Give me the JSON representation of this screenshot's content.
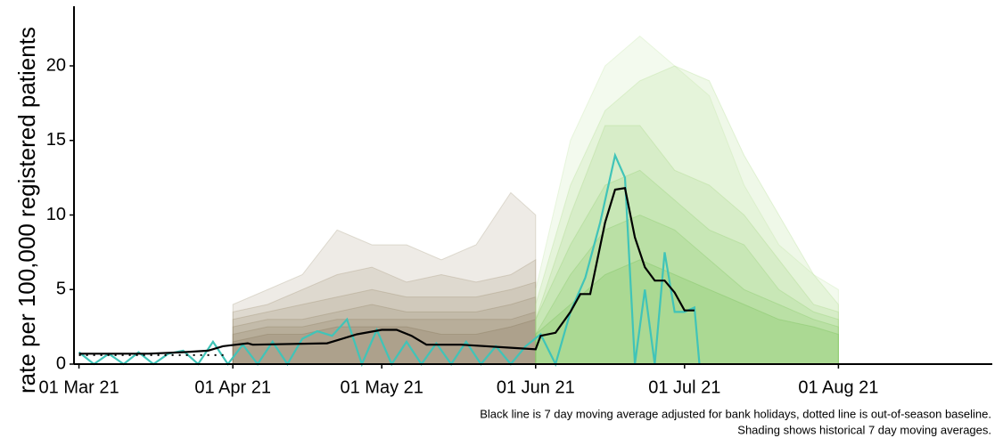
{
  "chart_data": {
    "type": "line",
    "y_label": "rate per 100,000 registered patients",
    "notes": [
      "Black line is 7 day moving average adjusted for bank holidays, dotted line is out-of-season baseline.",
      "Shading shows historical 7 day moving averages."
    ],
    "xlim": [
      "2021-02-28",
      "2021-09-01"
    ],
    "xticks": [
      {
        "value": "2021-03-01",
        "label": "01 Mar 21"
      },
      {
        "value": "2021-04-01",
        "label": "01 Apr 21"
      },
      {
        "value": "2021-05-01",
        "label": "01 May 21"
      },
      {
        "value": "2021-06-01",
        "label": "01 Jun 21"
      },
      {
        "value": "2021-07-01",
        "label": "01 Jul 21"
      },
      {
        "value": "2021-08-01",
        "label": "01 Aug 21"
      }
    ],
    "ylim": [
      0,
      24
    ],
    "yticks": [
      0,
      5,
      10,
      15,
      20
    ],
    "series": [
      {
        "style": "area",
        "color": "#b0a68c",
        "x": [
          "2021-04-01",
          "2021-04-08",
          "2021-04-15",
          "2021-04-22",
          "2021-04-29",
          "2021-05-06",
          "2021-05-13",
          "2021-05-20",
          "2021-05-27",
          "2021-06-01"
        ],
        "values": [
          4,
          5,
          6,
          9,
          8,
          8,
          7,
          8,
          11.5,
          10
        ]
      },
      {
        "style": "area",
        "color": "#a89c80",
        "x": [
          "2021-04-01",
          "2021-04-08",
          "2021-04-15",
          "2021-04-22",
          "2021-04-29",
          "2021-05-06",
          "2021-05-13",
          "2021-05-20",
          "2021-05-27",
          "2021-06-01"
        ],
        "values": [
          3.5,
          4,
          5,
          6,
          6.5,
          5.5,
          6,
          5.5,
          6,
          7
        ]
      },
      {
        "style": "area",
        "color": "#a09276",
        "x": [
          "2021-04-01",
          "2021-04-08",
          "2021-04-15",
          "2021-04-22",
          "2021-04-29",
          "2021-05-06",
          "2021-05-13",
          "2021-05-20",
          "2021-05-27",
          "2021-06-01"
        ],
        "values": [
          3,
          3.5,
          4,
          4.5,
          5,
          4.5,
          4.5,
          4.5,
          5,
          5.5
        ]
      },
      {
        "style": "area",
        "color": "#98896c",
        "x": [
          "2021-04-01",
          "2021-04-08",
          "2021-04-15",
          "2021-04-22",
          "2021-04-29",
          "2021-05-06",
          "2021-05-13",
          "2021-05-20",
          "2021-05-27",
          "2021-06-01"
        ],
        "values": [
          2.5,
          3,
          3,
          3.5,
          4,
          3.5,
          3.5,
          3.5,
          4,
          4.5
        ]
      },
      {
        "style": "area",
        "color": "#908064",
        "x": [
          "2021-04-01",
          "2021-04-08",
          "2021-04-15",
          "2021-04-22",
          "2021-04-29",
          "2021-05-06",
          "2021-05-13",
          "2021-05-20",
          "2021-05-27",
          "2021-06-01"
        ],
        "values": [
          2,
          2.5,
          2.5,
          3,
          3,
          3,
          3,
          3,
          3,
          3.5
        ]
      },
      {
        "style": "area",
        "color": "#88775c",
        "x": [
          "2021-04-01",
          "2021-04-08",
          "2021-04-15",
          "2021-04-22",
          "2021-04-29",
          "2021-05-06",
          "2021-05-13",
          "2021-05-20",
          "2021-05-27",
          "2021-06-01"
        ],
        "values": [
          1.5,
          2,
          2,
          2.5,
          2.5,
          2.5,
          2,
          2,
          2.5,
          3
        ]
      },
      {
        "style": "area",
        "color": "#c8e8b0",
        "x": [
          "2021-06-01",
          "2021-06-08",
          "2021-06-15",
          "2021-06-22",
          "2021-06-29",
          "2021-07-06",
          "2021-07-13",
          "2021-07-20",
          "2021-07-27",
          "2021-08-01"
        ],
        "values": [
          5,
          15,
          20,
          22,
          20,
          18,
          12,
          8,
          6,
          5
        ]
      },
      {
        "style": "area",
        "color": "#b8e098",
        "x": [
          "2021-06-01",
          "2021-06-08",
          "2021-06-15",
          "2021-06-22",
          "2021-06-29",
          "2021-07-06",
          "2021-07-13",
          "2021-07-20",
          "2021-07-27",
          "2021-08-01"
        ],
        "values": [
          4,
          12,
          17,
          19,
          20,
          19,
          14,
          10,
          6,
          4
        ]
      },
      {
        "style": "area",
        "color": "#a8d888",
        "x": [
          "2021-06-01",
          "2021-06-08",
          "2021-06-15",
          "2021-06-22",
          "2021-06-29",
          "2021-07-06",
          "2021-07-13",
          "2021-07-20",
          "2021-07-27",
          "2021-08-01"
        ],
        "values": [
          3,
          10,
          16,
          16,
          13,
          12,
          10,
          7,
          4,
          3.5
        ]
      },
      {
        "style": "area",
        "color": "#98d078",
        "x": [
          "2021-06-01",
          "2021-06-08",
          "2021-06-15",
          "2021-06-22",
          "2021-06-29",
          "2021-07-06",
          "2021-07-13",
          "2021-07-20",
          "2021-07-27",
          "2021-08-01"
        ],
        "values": [
          3,
          8,
          12,
          13,
          11,
          9,
          8,
          5,
          3.5,
          3
        ]
      },
      {
        "style": "area",
        "color": "#88c868",
        "x": [
          "2021-06-01",
          "2021-06-08",
          "2021-06-15",
          "2021-06-22",
          "2021-06-29",
          "2021-07-06",
          "2021-07-13",
          "2021-07-20",
          "2021-07-27",
          "2021-08-01"
        ],
        "values": [
          2,
          6,
          9,
          10,
          9,
          7,
          5,
          4,
          3,
          2.5
        ]
      },
      {
        "style": "area",
        "color": "#78c058",
        "x": [
          "2021-06-01",
          "2021-06-08",
          "2021-06-15",
          "2021-06-22",
          "2021-06-29",
          "2021-07-06",
          "2021-07-13",
          "2021-07-20",
          "2021-07-27",
          "2021-08-01"
        ],
        "values": [
          2,
          4,
          6,
          7,
          6,
          5,
          4,
          3,
          2.5,
          2
        ]
      },
      {
        "style": "line",
        "color": "#40c4b8",
        "x": [
          "2021-03-01",
          "2021-03-04",
          "2021-03-07",
          "2021-03-10",
          "2021-03-13",
          "2021-03-16",
          "2021-03-19",
          "2021-03-22",
          "2021-03-25",
          "2021-03-28",
          "2021-03-31",
          "2021-04-03",
          "2021-04-06",
          "2021-04-09",
          "2021-04-12",
          "2021-04-15",
          "2021-04-18",
          "2021-04-21",
          "2021-04-24",
          "2021-04-27",
          "2021-04-30",
          "2021-05-03",
          "2021-05-06",
          "2021-05-09",
          "2021-05-12",
          "2021-05-15",
          "2021-05-18",
          "2021-05-21",
          "2021-05-24",
          "2021-05-27",
          "2021-05-30",
          "2021-06-02",
          "2021-06-05",
          "2021-06-08",
          "2021-06-11",
          "2021-06-14",
          "2021-06-17",
          "2021-06-19",
          "2021-06-21",
          "2021-06-23",
          "2021-06-25",
          "2021-06-27",
          "2021-06-29",
          "2021-07-01",
          "2021-07-03",
          "2021-07-04"
        ],
        "values": [
          0.8,
          0,
          0.7,
          0,
          0.8,
          0,
          0.7,
          0.9,
          0,
          1.5,
          0,
          1.3,
          0,
          1.5,
          0,
          1.7,
          2.2,
          1.9,
          3.0,
          0,
          2.3,
          0,
          1.5,
          0,
          1.4,
          0,
          1.5,
          0,
          1.2,
          0,
          1.2,
          2.0,
          0,
          3.5,
          5.8,
          9.5,
          14.0,
          12.5,
          0,
          5.0,
          0,
          7.5,
          3.5,
          3.5,
          3.8,
          0
        ]
      },
      {
        "style": "dotted",
        "color": "#000000",
        "x": [
          "2021-03-01",
          "2021-03-31"
        ],
        "values": [
          0.6,
          0.6
        ]
      },
      {
        "style": "line",
        "color": "#000000",
        "x": [
          "2021-03-01",
          "2021-03-15",
          "2021-03-22",
          "2021-03-27",
          "2021-03-30",
          "2021-04-04",
          "2021-04-05",
          "2021-04-20",
          "2021-04-26",
          "2021-05-01",
          "2021-05-04",
          "2021-05-07",
          "2021-05-10",
          "2021-05-17",
          "2021-05-27",
          "2021-06-01",
          "2021-06-02",
          "2021-06-05",
          "2021-06-08",
          "2021-06-10",
          "2021-06-12",
          "2021-06-15",
          "2021-06-17",
          "2021-06-19",
          "2021-06-21",
          "2021-06-23",
          "2021-06-25",
          "2021-06-27",
          "2021-06-29",
          "2021-07-01",
          "2021-07-03"
        ],
        "values": [
          0.7,
          0.7,
          0.8,
          0.9,
          1.2,
          1.4,
          1.3,
          1.4,
          2.0,
          2.3,
          2.3,
          1.9,
          1.3,
          1.3,
          1.1,
          1.0,
          1.9,
          2.1,
          3.5,
          4.7,
          4.7,
          9.5,
          11.7,
          11.8,
          8.5,
          6.5,
          5.6,
          5.6,
          4.8,
          3.6,
          3.6
        ]
      }
    ]
  }
}
